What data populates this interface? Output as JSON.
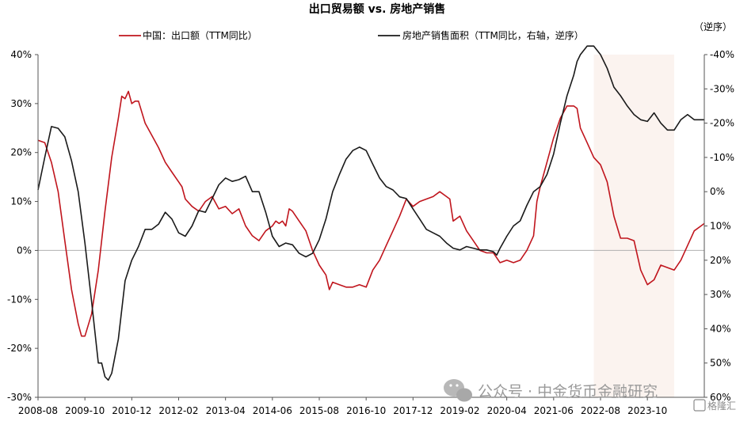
{
  "chart_data": {
    "type": "line",
    "title": "出口贸易额 vs. 房地产销售",
    "right_axis_note": "（逆序）",
    "x_tick_labels": [
      "2008-08",
      "2009-10",
      "2010-12",
      "2012-02",
      "2013-04",
      "2014-06",
      "2015-08",
      "2016-10",
      "2017-12",
      "2019-02",
      "2020-04",
      "2021-06",
      "2022-08",
      "2023-10"
    ],
    "left_axis": {
      "tick_labels": [
        "40%",
        "30%",
        "20%",
        "10%",
        "0%",
        "-10%",
        "-20%",
        "-30%"
      ],
      "ylim": [
        -30,
        40
      ]
    },
    "right_axis": {
      "tick_labels": [
        "-40%",
        "-30%",
        "-20%",
        "-10%",
        "0%",
        "10%",
        "20%",
        "30%",
        "40%",
        "50%",
        "60%"
      ],
      "ylim": [
        60,
        -40
      ],
      "inverted": true
    },
    "highlight_region": {
      "from": "2022-06",
      "to": "2024-06",
      "color": "#fbf3ef"
    },
    "series": [
      {
        "name": "中国：出口额（TTM同比）",
        "axis": "left",
        "color": "#c0151d",
        "points": [
          [
            "2008-08",
            22.5
          ],
          [
            "2008-10",
            22
          ],
          [
            "2008-12",
            18
          ],
          [
            "2009-02",
            12
          ],
          [
            "2009-04",
            2
          ],
          [
            "2009-06",
            -8
          ],
          [
            "2009-08",
            -15
          ],
          [
            "2009-09",
            -17.5
          ],
          [
            "2009-10",
            -17.5
          ],
          [
            "2009-12",
            -13
          ],
          [
            "2010-02",
            -4
          ],
          [
            "2010-04",
            8
          ],
          [
            "2010-06",
            19
          ],
          [
            "2010-08",
            27
          ],
          [
            "2010-09",
            31.5
          ],
          [
            "2010-10",
            31
          ],
          [
            "2010-11",
            32.5
          ],
          [
            "2010-12",
            30
          ],
          [
            "2011-01",
            30.5
          ],
          [
            "2011-02",
            30.5
          ],
          [
            "2011-04",
            26
          ],
          [
            "2011-06",
            23.5
          ],
          [
            "2011-08",
            21
          ],
          [
            "2011-10",
            18
          ],
          [
            "2011-12",
            16
          ],
          [
            "2012-02",
            14
          ],
          [
            "2012-03",
            13
          ],
          [
            "2012-04",
            10.5
          ],
          [
            "2012-06",
            9
          ],
          [
            "2012-08",
            8
          ],
          [
            "2012-10",
            10
          ],
          [
            "2012-12",
            11
          ],
          [
            "2013-02",
            8.5
          ],
          [
            "2013-04",
            9
          ],
          [
            "2013-06",
            7.5
          ],
          [
            "2013-08",
            8.5
          ],
          [
            "2013-10",
            5
          ],
          [
            "2013-12",
            3
          ],
          [
            "2014-02",
            2
          ],
          [
            "2014-04",
            4
          ],
          [
            "2014-06",
            5
          ],
          [
            "2014-07",
            6
          ],
          [
            "2014-08",
            5.5
          ],
          [
            "2014-09",
            6
          ],
          [
            "2014-10",
            5
          ],
          [
            "2014-11",
            8.5
          ],
          [
            "2014-12",
            8
          ],
          [
            "2015-02",
            6
          ],
          [
            "2015-04",
            4
          ],
          [
            "2015-06",
            0
          ],
          [
            "2015-08",
            -3
          ],
          [
            "2015-10",
            -5
          ],
          [
            "2015-11",
            -8
          ],
          [
            "2015-12",
            -6.5
          ],
          [
            "2016-02",
            -7
          ],
          [
            "2016-04",
            -7.5
          ],
          [
            "2016-06",
            -7.5
          ],
          [
            "2016-08",
            -7
          ],
          [
            "2016-10",
            -7.5
          ],
          [
            "2016-12",
            -4
          ],
          [
            "2017-02",
            -2
          ],
          [
            "2017-04",
            1
          ],
          [
            "2017-06",
            4
          ],
          [
            "2017-08",
            7
          ],
          [
            "2017-10",
            10.5
          ],
          [
            "2017-12",
            9
          ],
          [
            "2018-02",
            10
          ],
          [
            "2018-04",
            10.5
          ],
          [
            "2018-06",
            11
          ],
          [
            "2018-08",
            12
          ],
          [
            "2018-10",
            11
          ],
          [
            "2018-11",
            10.5
          ],
          [
            "2018-12",
            6
          ],
          [
            "2019-02",
            7
          ],
          [
            "2019-04",
            4
          ],
          [
            "2019-06",
            2
          ],
          [
            "2019-08",
            0
          ],
          [
            "2019-10",
            -0.5
          ],
          [
            "2019-12",
            -0.5
          ],
          [
            "2020-02",
            -2.5
          ],
          [
            "2020-04",
            -2
          ],
          [
            "2020-06",
            -2.5
          ],
          [
            "2020-08",
            -2
          ],
          [
            "2020-10",
            0
          ],
          [
            "2020-12",
            3
          ],
          [
            "2021-01",
            10
          ],
          [
            "2021-02",
            13
          ],
          [
            "2021-04",
            18
          ],
          [
            "2021-06",
            23
          ],
          [
            "2021-08",
            27
          ],
          [
            "2021-10",
            29.5
          ],
          [
            "2021-12",
            29.5
          ],
          [
            "2022-01",
            29
          ],
          [
            "2022-02",
            25
          ],
          [
            "2022-04",
            22
          ],
          [
            "2022-06",
            19
          ],
          [
            "2022-08",
            17.5
          ],
          [
            "2022-10",
            14
          ],
          [
            "2022-12",
            7
          ],
          [
            "2023-02",
            2.5
          ],
          [
            "2023-04",
            2.5
          ],
          [
            "2023-06",
            2
          ],
          [
            "2023-08",
            -4
          ],
          [
            "2023-10",
            -7
          ],
          [
            "2023-12",
            -6
          ],
          [
            "2024-02",
            -3
          ],
          [
            "2024-04",
            -3.5
          ],
          [
            "2024-06",
            -4
          ],
          [
            "2024-08",
            -2
          ],
          [
            "2024-10",
            1
          ],
          [
            "2024-12",
            4
          ],
          [
            "2025-02",
            5
          ],
          [
            "2025-03",
            5.5
          ]
        ]
      },
      {
        "name": "房地产销售面积（TTM同比，右轴，逆序）",
        "axis": "right",
        "color": "#1a1a1a",
        "points": [
          [
            "2008-08",
            -0.5
          ],
          [
            "2008-10",
            -10
          ],
          [
            "2008-12",
            -19
          ],
          [
            "2009-02",
            -18.5
          ],
          [
            "2009-04",
            -16
          ],
          [
            "2009-06",
            -9
          ],
          [
            "2009-08",
            0
          ],
          [
            "2009-10",
            15
          ],
          [
            "2009-12",
            32
          ],
          [
            "2010-02",
            50
          ],
          [
            "2010-03",
            50
          ],
          [
            "2010-04",
            54
          ],
          [
            "2010-05",
            55
          ],
          [
            "2010-06",
            53
          ],
          [
            "2010-08",
            43
          ],
          [
            "2010-10",
            26
          ],
          [
            "2010-12",
            20
          ],
          [
            "2011-02",
            16
          ],
          [
            "2011-04",
            11
          ],
          [
            "2011-06",
            11
          ],
          [
            "2011-08",
            9.5
          ],
          [
            "2011-10",
            6
          ],
          [
            "2011-12",
            8
          ],
          [
            "2012-02",
            12
          ],
          [
            "2012-04",
            13
          ],
          [
            "2012-06",
            10
          ],
          [
            "2012-08",
            5.5
          ],
          [
            "2012-10",
            6
          ],
          [
            "2012-12",
            2
          ],
          [
            "2013-02",
            -2
          ],
          [
            "2013-04",
            -4
          ],
          [
            "2013-06",
            -3
          ],
          [
            "2013-08",
            -3.5
          ],
          [
            "2013-10",
            -4.5
          ],
          [
            "2013-12",
            0
          ],
          [
            "2014-02",
            0
          ],
          [
            "2014-04",
            6
          ],
          [
            "2014-06",
            13
          ],
          [
            "2014-08",
            16
          ],
          [
            "2014-10",
            15
          ],
          [
            "2014-12",
            15.5
          ],
          [
            "2015-02",
            18
          ],
          [
            "2015-04",
            19
          ],
          [
            "2015-06",
            18
          ],
          [
            "2015-08",
            14
          ],
          [
            "2015-10",
            8
          ],
          [
            "2015-12",
            0
          ],
          [
            "2016-02",
            -5
          ],
          [
            "2016-04",
            -9.5
          ],
          [
            "2016-06",
            -12
          ],
          [
            "2016-08",
            -13
          ],
          [
            "2016-10",
            -12
          ],
          [
            "2016-12",
            -8
          ],
          [
            "2017-02",
            -4
          ],
          [
            "2017-04",
            -1.5
          ],
          [
            "2017-06",
            -0.5
          ],
          [
            "2017-08",
            1.5
          ],
          [
            "2017-10",
            2
          ],
          [
            "2017-12",
            5
          ],
          [
            "2018-02",
            8
          ],
          [
            "2018-04",
            11
          ],
          [
            "2018-06",
            12
          ],
          [
            "2018-08",
            13
          ],
          [
            "2018-10",
            15
          ],
          [
            "2018-12",
            16.5
          ],
          [
            "2019-02",
            17
          ],
          [
            "2019-04",
            16
          ],
          [
            "2019-06",
            16.5
          ],
          [
            "2019-08",
            17
          ],
          [
            "2019-10",
            17
          ],
          [
            "2019-12",
            17.5
          ],
          [
            "2020-01",
            18.5
          ],
          [
            "2020-02",
            16.5
          ],
          [
            "2020-04",
            13
          ],
          [
            "2020-06",
            10
          ],
          [
            "2020-08",
            8.5
          ],
          [
            "2020-10",
            4
          ],
          [
            "2020-12",
            0
          ],
          [
            "2021-02",
            -1.5
          ],
          [
            "2021-04",
            -5
          ],
          [
            "2021-06",
            -11
          ],
          [
            "2021-08",
            -20
          ],
          [
            "2021-10",
            -28
          ],
          [
            "2021-12",
            -34
          ],
          [
            "2022-01",
            -38
          ],
          [
            "2022-02",
            -40
          ],
          [
            "2022-04",
            -42.5
          ],
          [
            "2022-06",
            -42.5
          ],
          [
            "2022-08",
            -40
          ],
          [
            "2022-10",
            -36
          ],
          [
            "2022-12",
            -30.5
          ],
          [
            "2023-02",
            -28
          ],
          [
            "2023-04",
            -25
          ],
          [
            "2023-06",
            -22.5
          ],
          [
            "2023-08",
            -21
          ],
          [
            "2023-10",
            -20.5
          ],
          [
            "2023-12",
            -23
          ],
          [
            "2024-02",
            -20
          ],
          [
            "2024-04",
            -18
          ],
          [
            "2024-06",
            -18
          ],
          [
            "2024-08",
            -21
          ],
          [
            "2024-10",
            -22.5
          ],
          [
            "2024-12",
            -21
          ],
          [
            "2025-02",
            -21
          ],
          [
            "2025-03",
            -21
          ]
        ]
      }
    ]
  },
  "watermark": {
    "text": "公众号 · 中金货币金融研究",
    "badge": "格隆汇"
  }
}
